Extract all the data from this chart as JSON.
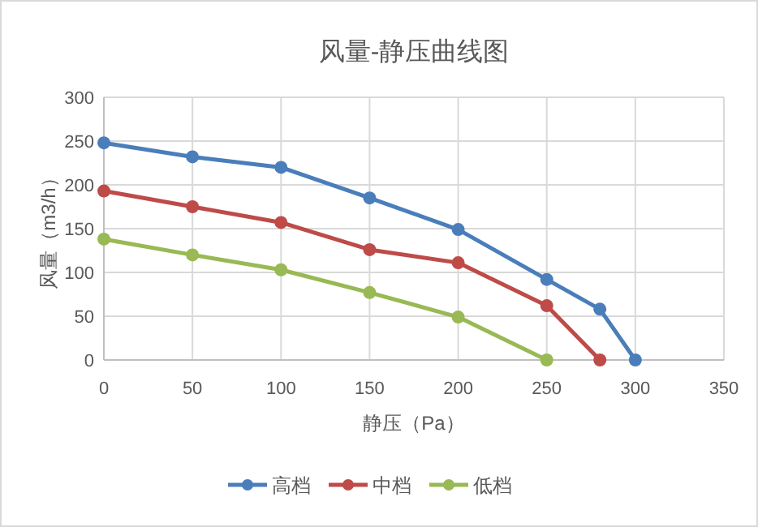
{
  "chart_data": {
    "type": "line",
    "title": "风量-静压曲线图",
    "xlabel": "静压（Pa）",
    "ylabel": "风量（m3/h）",
    "xlim": [
      0,
      350
    ],
    "xticks": [
      0,
      50,
      100,
      150,
      200,
      250,
      300,
      350
    ],
    "ylim": [
      0,
      300
    ],
    "yticks": [
      0,
      50,
      100,
      150,
      200,
      250,
      300
    ],
    "grid": true,
    "legend": "bottom",
    "marker": "circle",
    "line_style": "solid",
    "series": [
      {
        "name": "高档",
        "color": "#4a7ebb",
        "x": [
          0,
          50,
          100,
          150,
          200,
          250,
          280,
          300
        ],
        "values": [
          248,
          232,
          220,
          185,
          149,
          92,
          58,
          0
        ]
      },
      {
        "name": "中档",
        "color": "#be4b48",
        "x": [
          0,
          50,
          100,
          150,
          200,
          250,
          280
        ],
        "values": [
          193,
          175,
          157,
          126,
          111,
          62,
          0
        ]
      },
      {
        "name": "低档",
        "color": "#98b954",
        "x": [
          0,
          50,
          100,
          150,
          200,
          250
        ],
        "values": [
          138,
          120,
          103,
          77,
          49,
          0
        ]
      }
    ]
  }
}
